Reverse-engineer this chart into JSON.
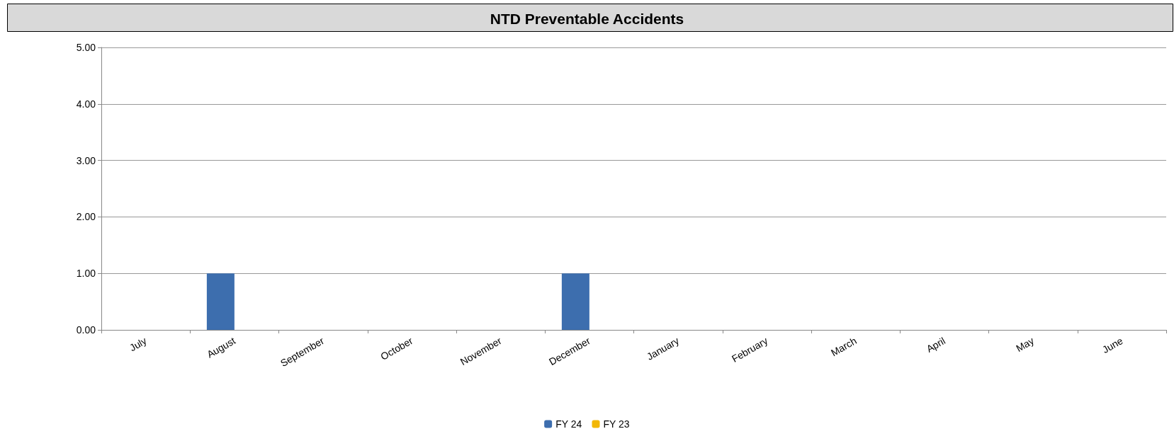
{
  "chart_data": {
    "type": "bar",
    "title": "NTD Preventable Accidents",
    "categories": [
      "July",
      "August",
      "September",
      "October",
      "November",
      "December",
      "January",
      "February",
      "March",
      "April",
      "May",
      "June"
    ],
    "series": [
      {
        "name": "FY 24",
        "color": "#3d6eae",
        "values": [
          0,
          1,
          0,
          0,
          0,
          1,
          0,
          0,
          0,
          0,
          0,
          0
        ]
      },
      {
        "name": "FY 23",
        "color": "#f2b705",
        "values": [
          0,
          0,
          0,
          0,
          0,
          0,
          0,
          0,
          0,
          0,
          0,
          0
        ]
      }
    ],
    "ylim": [
      0,
      5
    ],
    "yticks": [
      {
        "value": 0,
        "label": "0.00"
      },
      {
        "value": 1,
        "label": "1.00"
      },
      {
        "value": 2,
        "label": "2.00"
      },
      {
        "value": 3,
        "label": "3.00"
      },
      {
        "value": 4,
        "label": "4.00"
      },
      {
        "value": 5,
        "label": "5.00"
      }
    ],
    "grid": "y",
    "legend": "bottom"
  }
}
